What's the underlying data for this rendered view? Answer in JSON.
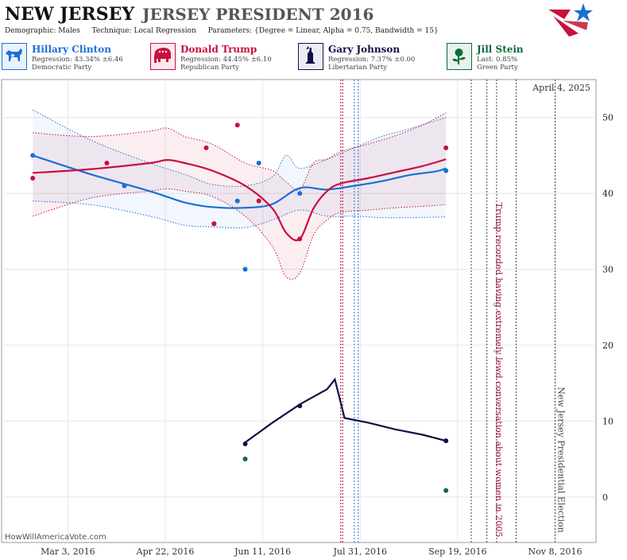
{
  "header": {
    "state": "NEW JERSEY",
    "race": "JERSEY PRESIDENT 2016",
    "demographic": "Demographic: Males",
    "technique": "Technique: Local Regression",
    "parameters": "Parameters: {Degree = Linear, Alpha = 0.75, Bandwidth = 15}"
  },
  "candidates": [
    {
      "name": "Hillary Clinton",
      "line1": "Regression: 43.34% ±6.46",
      "line2": "Democratic Party",
      "color": "#1a6fd6",
      "bg": "#e8f1fc",
      "icon": "donkey-icon"
    },
    {
      "name": "Donald Trump",
      "line1": "Regression: 44.45% ±6.10",
      "line2": "Republican Party",
      "color": "#c8103e",
      "bg": "#fbe8ed",
      "icon": "elephant-icon"
    },
    {
      "name": "Gary Johnson",
      "line1": "Regression: 7.37% ±0.00",
      "line2": "Libertarian Party",
      "color": "#101048",
      "bg": "#ececf4",
      "icon": "liberty-icon"
    },
    {
      "name": "Jill Stein",
      "line1": "Last: 0.85%",
      "line2": "Green Party",
      "color": "#0b6b3a",
      "bg": "#e6f2ea",
      "icon": "rose-icon"
    }
  ],
  "chart_data": {
    "type": "line",
    "x_axis": {
      "type": "date",
      "range": [
        "2016-01-29",
        "2016-11-29"
      ],
      "ticks": [
        "Mar 3, 2016",
        "Apr 22, 2016",
        "Jun 11, 2016",
        "Jul 31, 2016",
        "Sep 19, 2016",
        "Nov 8, 2016"
      ]
    },
    "y_axis": {
      "range": [
        -6,
        55
      ],
      "ticks": [
        0,
        10,
        20,
        30,
        40,
        50
      ],
      "position": "right"
    },
    "grid": true,
    "date_stamp": "April 4, 2025",
    "credit": "HowWillAmericaVote.com",
    "annotations": [
      {
        "text": "Trump recorded having extremely lewd conversation about women in 2005",
        "date": "2016-10-07",
        "color": "#a3124b"
      },
      {
        "text": "New Jersey Presidential Election",
        "date": "2016-11-08",
        "color": "#444444"
      }
    ],
    "vlines": [
      {
        "date": "2016-07-21",
        "color": "#a3124b",
        "style": "dotted"
      },
      {
        "date": "2016-07-22",
        "color": "#a3124b",
        "style": "dotted"
      },
      {
        "date": "2016-07-28",
        "color": "#1a6fd6",
        "style": "dotted"
      },
      {
        "date": "2016-07-30",
        "color": "#1a6fd6",
        "style": "dotted"
      },
      {
        "date": "2016-09-26",
        "color": "#444444",
        "style": "dotted"
      },
      {
        "date": "2016-10-04",
        "color": "#444444",
        "style": "dotted"
      },
      {
        "date": "2016-10-09",
        "color": "#444444",
        "style": "dotted"
      },
      {
        "date": "2016-10-19",
        "color": "#444444",
        "style": "dotted"
      },
      {
        "date": "2016-11-08",
        "color": "#444444",
        "style": "dotted"
      }
    ],
    "series": [
      {
        "name": "Hillary Clinton",
        "color": "#1a6fd6",
        "line": [
          [
            "2016-02-14",
            45.0
          ],
          [
            "2016-03-15",
            42.5
          ],
          [
            "2016-04-14",
            40.3
          ],
          [
            "2016-05-02",
            38.8
          ],
          [
            "2016-05-16",
            38.2
          ],
          [
            "2016-06-02",
            38.1
          ],
          [
            "2016-06-16",
            38.6
          ],
          [
            "2016-06-30",
            40.7
          ],
          [
            "2016-07-14",
            40.5
          ],
          [
            "2016-07-28",
            41.0
          ],
          [
            "2016-08-11",
            41.6
          ],
          [
            "2016-08-25",
            42.4
          ],
          [
            "2016-09-08",
            42.9
          ],
          [
            "2016-09-13",
            43.3
          ]
        ],
        "upper": [
          [
            "2016-02-14",
            51.0
          ],
          [
            "2016-03-15",
            47.0
          ],
          [
            "2016-04-14",
            44.0
          ],
          [
            "2016-05-02",
            42.5
          ],
          [
            "2016-05-16",
            41.2
          ],
          [
            "2016-06-02",
            41.0
          ],
          [
            "2016-06-16",
            42.2
          ],
          [
            "2016-06-23",
            45.0
          ],
          [
            "2016-06-30",
            43.3
          ],
          [
            "2016-07-14",
            44.5
          ],
          [
            "2016-07-28",
            46.0
          ],
          [
            "2016-08-11",
            47.5
          ],
          [
            "2016-08-25",
            48.5
          ],
          [
            "2016-09-13",
            50.0
          ]
        ],
        "lower": [
          [
            "2016-02-14",
            39.0
          ],
          [
            "2016-03-15",
            38.5
          ],
          [
            "2016-04-14",
            37.0
          ],
          [
            "2016-05-02",
            35.8
          ],
          [
            "2016-05-16",
            35.6
          ],
          [
            "2016-06-02",
            35.5
          ],
          [
            "2016-06-16",
            36.5
          ],
          [
            "2016-06-30",
            37.8
          ],
          [
            "2016-07-14",
            37.0
          ],
          [
            "2016-07-28",
            37.0
          ],
          [
            "2016-08-11",
            36.8
          ],
          [
            "2016-08-25",
            36.8
          ],
          [
            "2016-09-13",
            36.9
          ]
        ],
        "points": [
          [
            "2016-02-14",
            45
          ],
          [
            "2016-04-01",
            41
          ],
          [
            "2016-05-17",
            36
          ],
          [
            "2016-05-29",
            39
          ],
          [
            "2016-06-02",
            30
          ],
          [
            "2016-06-09",
            44
          ],
          [
            "2016-06-30",
            40
          ],
          [
            "2016-09-13",
            43
          ]
        ]
      },
      {
        "name": "Donald Trump",
        "color": "#c8103e",
        "line": [
          [
            "2016-02-14",
            42.7
          ],
          [
            "2016-03-15",
            43.2
          ],
          [
            "2016-04-14",
            44.0
          ],
          [
            "2016-04-23",
            44.4
          ],
          [
            "2016-05-02",
            44.0
          ],
          [
            "2016-05-16",
            43.0
          ],
          [
            "2016-06-02",
            41.0
          ],
          [
            "2016-06-16",
            38.0
          ],
          [
            "2016-06-23",
            34.8
          ],
          [
            "2016-06-30",
            34.0
          ],
          [
            "2016-07-07",
            38.0
          ],
          [
            "2016-07-14",
            40.3
          ],
          [
            "2016-07-21",
            41.3
          ],
          [
            "2016-08-04",
            42.0
          ],
          [
            "2016-08-18",
            42.8
          ],
          [
            "2016-09-01",
            43.6
          ],
          [
            "2016-09-13",
            44.5
          ]
        ],
        "upper": [
          [
            "2016-02-14",
            48.0
          ],
          [
            "2016-03-15",
            47.5
          ],
          [
            "2016-04-14",
            48.2
          ],
          [
            "2016-04-23",
            48.6
          ],
          [
            "2016-05-02",
            47.5
          ],
          [
            "2016-05-16",
            46.5
          ],
          [
            "2016-06-02",
            44.0
          ],
          [
            "2016-06-16",
            43.0
          ],
          [
            "2016-06-23",
            41.5
          ],
          [
            "2016-06-30",
            40.5
          ],
          [
            "2016-07-07",
            44.0
          ],
          [
            "2016-07-14",
            44.5
          ],
          [
            "2016-07-21",
            45.5
          ],
          [
            "2016-08-04",
            46.5
          ],
          [
            "2016-08-18",
            47.6
          ],
          [
            "2016-09-01",
            49.0
          ],
          [
            "2016-09-13",
            50.6
          ]
        ],
        "lower": [
          [
            "2016-02-14",
            37.0
          ],
          [
            "2016-03-15",
            39.4
          ],
          [
            "2016-04-14",
            40.3
          ],
          [
            "2016-04-23",
            40.6
          ],
          [
            "2016-05-02",
            40.3
          ],
          [
            "2016-05-16",
            39.6
          ],
          [
            "2016-06-02",
            37.0
          ],
          [
            "2016-06-16",
            33.0
          ],
          [
            "2016-06-23",
            29.0
          ],
          [
            "2016-06-30",
            29.5
          ],
          [
            "2016-07-07",
            34.5
          ],
          [
            "2016-07-14",
            36.5
          ],
          [
            "2016-07-21",
            37.5
          ],
          [
            "2016-08-04",
            37.8
          ],
          [
            "2016-08-18",
            38.1
          ],
          [
            "2016-09-01",
            38.3
          ],
          [
            "2016-09-13",
            38.5
          ]
        ],
        "points": [
          [
            "2016-02-14",
            42
          ],
          [
            "2016-03-23",
            44
          ],
          [
            "2016-05-13",
            46
          ],
          [
            "2016-05-17",
            36
          ],
          [
            "2016-05-29",
            49
          ],
          [
            "2016-06-09",
            39
          ],
          [
            "2016-06-30",
            34
          ],
          [
            "2016-09-13",
            46
          ]
        ]
      },
      {
        "name": "Gary Johnson",
        "color": "#101048",
        "line": [
          [
            "2016-06-02",
            7.2
          ],
          [
            "2016-06-16",
            9.8
          ],
          [
            "2016-06-30",
            12.2
          ],
          [
            "2016-07-14",
            14.2
          ],
          [
            "2016-07-18",
            15.5
          ],
          [
            "2016-07-23",
            10.4
          ],
          [
            "2016-08-04",
            9.8
          ],
          [
            "2016-08-18",
            8.9
          ],
          [
            "2016-09-01",
            8.2
          ],
          [
            "2016-09-13",
            7.4
          ]
        ],
        "points": [
          [
            "2016-06-02",
            7
          ],
          [
            "2016-06-30",
            12
          ],
          [
            "2016-09-13",
            7.4
          ]
        ]
      },
      {
        "name": "Jill Stein",
        "color": "#0b6b3a",
        "points": [
          [
            "2016-06-02",
            5
          ],
          [
            "2016-09-13",
            0.85
          ]
        ]
      }
    ]
  }
}
